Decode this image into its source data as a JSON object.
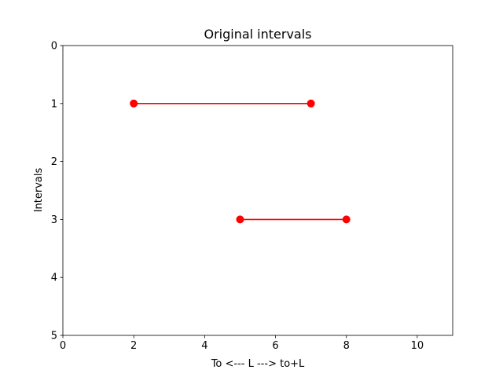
{
  "chart_data": {
    "type": "line",
    "title": "Original intervals",
    "xlabel": "To <--- L ---> to+L",
    "ylabel": "Intervals",
    "xlim": [
      0,
      11
    ],
    "ylim": [
      5,
      0
    ],
    "y_inverted": true,
    "grid": false,
    "legend": "none",
    "x_ticks": [
      0,
      2,
      4,
      6,
      8,
      10
    ],
    "y_ticks": [
      0,
      1,
      2,
      3,
      4,
      5
    ],
    "series": [
      {
        "x": [
          2,
          7
        ],
        "y": [
          1,
          1
        ],
        "color": "#ff0000",
        "marker": "circle"
      },
      {
        "x": [
          5,
          8
        ],
        "y": [
          3,
          3
        ],
        "color": "#ff0000",
        "marker": "circle"
      }
    ]
  }
}
